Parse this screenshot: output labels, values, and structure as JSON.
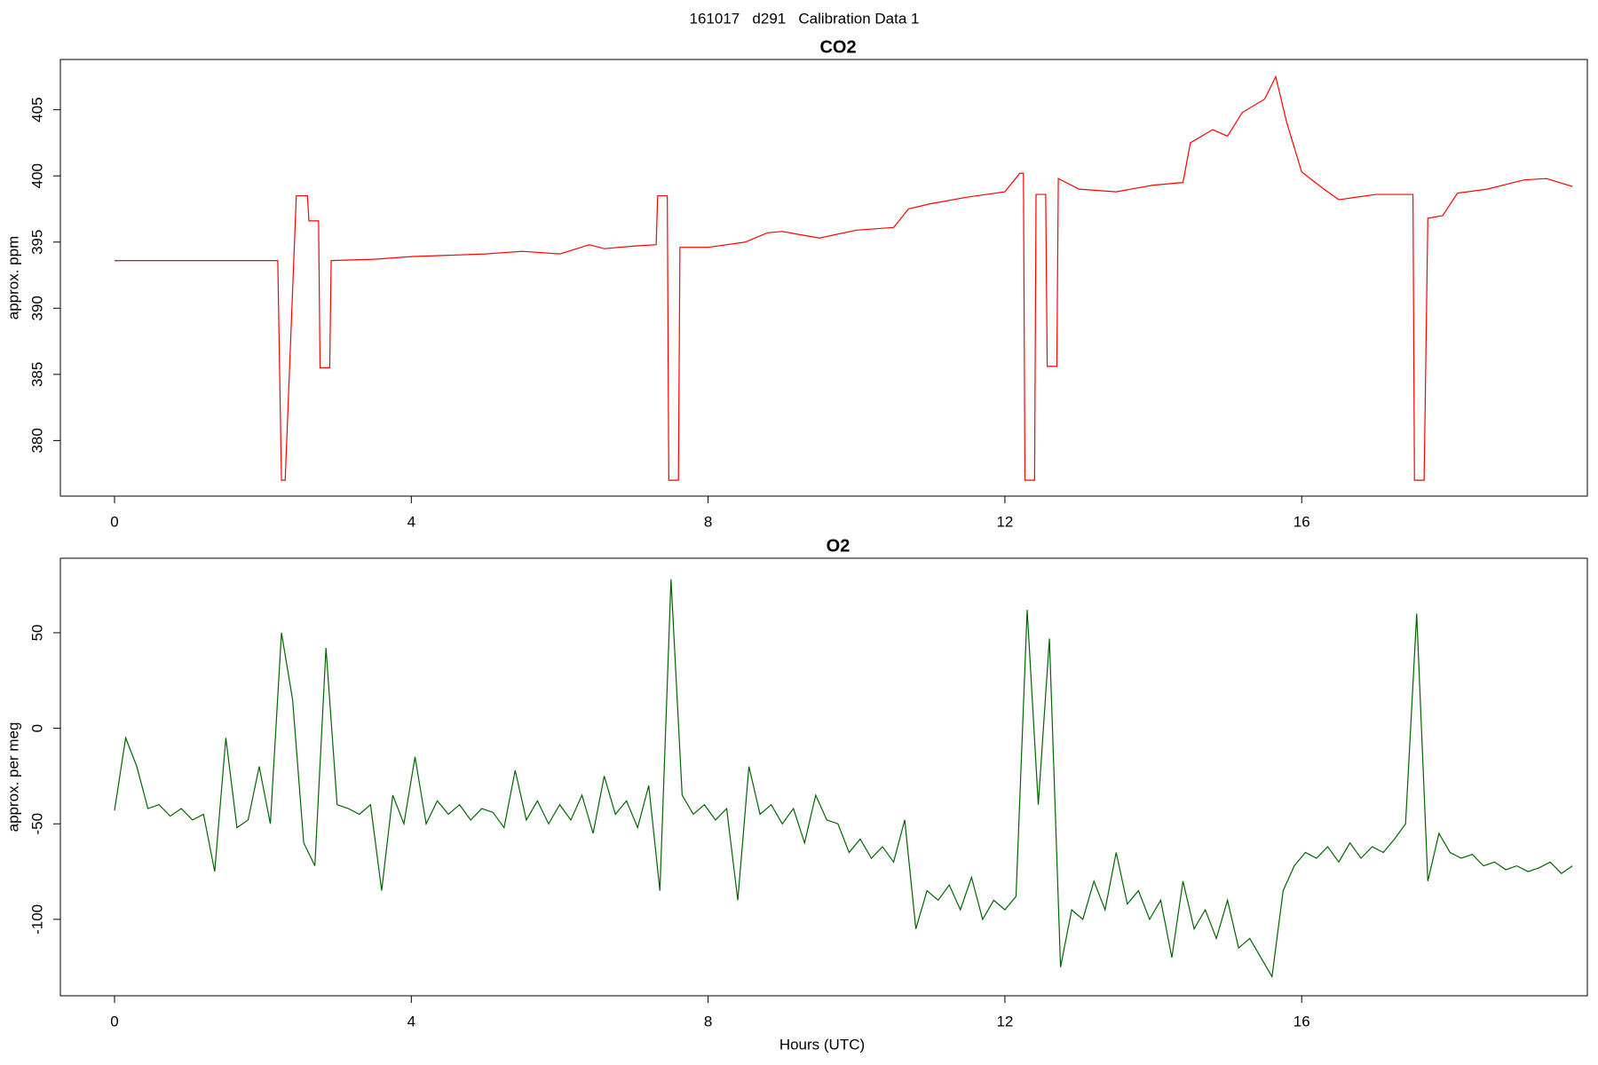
{
  "title": "161017   d291   Calibration Data 1",
  "chart_data": [
    {
      "type": "line",
      "title": "CO2",
      "ylabel": "approx. ppm",
      "xlim": [
        -0.73,
        19.85
      ],
      "xticks": [
        0,
        4,
        8,
        12,
        16
      ],
      "ylim": [
        375.8,
        408.8
      ],
      "yticks": [
        380,
        385,
        390,
        395,
        400,
        405
      ],
      "series": [
        {
          "name": "CO2",
          "color": "#ff0000",
          "x": [
            0,
            2.2,
            2.25,
            2.3,
            2.45,
            2.6,
            2.62,
            2.75,
            2.77,
            2.9,
            2.92,
            3.5,
            4,
            4.5,
            5,
            5.5,
            6,
            6.4,
            6.6,
            7,
            7.3,
            7.32,
            7.45,
            7.47,
            7.6,
            7.62,
            8,
            8.5,
            8.8,
            9,
            9.5,
            10,
            10.5,
            10.7,
            11,
            11.5,
            12,
            12.2,
            12.25,
            12.27,
            12.4,
            12.42,
            12.55,
            12.57,
            12.7,
            12.72,
            13,
            13.5,
            14,
            14.4,
            14.5,
            14.8,
            15,
            15.2,
            15.5,
            15.65,
            15.8,
            16,
            16.3,
            16.5,
            17,
            17.5,
            17.52,
            17.65,
            17.7,
            17.9,
            18.1,
            18.5,
            19,
            19.3,
            19.65
          ],
          "values": [
            393.6,
            393.6,
            377,
            377,
            398.5,
            398.5,
            396.6,
            396.6,
            385.5,
            385.5,
            393.6,
            393.7,
            393.9,
            394,
            394.1,
            394.3,
            394.1,
            394.8,
            394.5,
            394.7,
            394.8,
            398.5,
            398.5,
            377,
            377,
            394.6,
            394.6,
            395,
            395.7,
            395.8,
            395.3,
            395.9,
            396.1,
            397.5,
            397.9,
            398.4,
            398.8,
            400.2,
            400.2,
            377,
            377,
            398.6,
            398.6,
            385.6,
            385.6,
            399.8,
            399,
            398.8,
            399.3,
            399.5,
            402.5,
            403.5,
            403,
            404.8,
            405.8,
            407.5,
            404,
            400.3,
            399,
            398.2,
            398.6,
            398.6,
            377,
            377,
            396.8,
            397,
            398.7,
            399,
            399.7,
            399.8,
            399.2
          ]
        }
      ]
    },
    {
      "type": "line",
      "title": "O2",
      "ylabel": "approx. per meg",
      "xlabel": "Hours (UTC)",
      "xlim": [
        -0.73,
        19.85
      ],
      "xticks": [
        0,
        4,
        8,
        12,
        16
      ],
      "ylim": [
        -140,
        89
      ],
      "yticks": [
        -100,
        -50,
        0,
        50
      ],
      "series": [
        {
          "name": "O2",
          "color": "#006400",
          "x": [
            0,
            0.15,
            0.3,
            0.45,
            0.6,
            0.75,
            0.9,
            1.05,
            1.2,
            1.35,
            1.5,
            1.65,
            1.8,
            1.95,
            2.1,
            2.25,
            2.4,
            2.55,
            2.7,
            2.85,
            3,
            3.15,
            3.3,
            3.45,
            3.6,
            3.75,
            3.9,
            4.05,
            4.2,
            4.35,
            4.5,
            4.65,
            4.8,
            4.95,
            5.1,
            5.25,
            5.4,
            5.55,
            5.7,
            5.85,
            6,
            6.15,
            6.3,
            6.45,
            6.6,
            6.75,
            6.9,
            7.05,
            7.2,
            7.35,
            7.5,
            7.65,
            7.8,
            7.95,
            8.1,
            8.25,
            8.4,
            8.55,
            8.7,
            8.85,
            9,
            9.15,
            9.3,
            9.45,
            9.6,
            9.75,
            9.9,
            10.05,
            10.2,
            10.35,
            10.5,
            10.65,
            10.8,
            10.95,
            11.1,
            11.25,
            11.4,
            11.55,
            11.7,
            11.85,
            12,
            12.15,
            12.3,
            12.45,
            12.6,
            12.75,
            12.9,
            13.05,
            13.2,
            13.35,
            13.5,
            13.65,
            13.8,
            13.95,
            14.1,
            14.25,
            14.4,
            14.55,
            14.7,
            14.85,
            15,
            15.15,
            15.3,
            15.45,
            15.6,
            15.75,
            15.9,
            16.05,
            16.2,
            16.35,
            16.5,
            16.65,
            16.8,
            16.95,
            17.1,
            17.25,
            17.4,
            17.55,
            17.7,
            17.85,
            18,
            18.15,
            18.3,
            18.45,
            18.6,
            18.75,
            18.9,
            19.05,
            19.2,
            19.35,
            19.5,
            19.65
          ],
          "values": [
            -43,
            -5,
            -20,
            -42,
            -40,
            -46,
            -42,
            -48,
            -45,
            -75,
            -5,
            -52,
            -48,
            -20,
            -50,
            50,
            15,
            -60,
            -72,
            42,
            -40,
            -42,
            -45,
            -40,
            -85,
            -35,
            -50,
            -15,
            -50,
            -38,
            -45,
            -40,
            -48,
            -42,
            -44,
            -52,
            -22,
            -48,
            -38,
            -50,
            -40,
            -48,
            -35,
            -55,
            -25,
            -45,
            -38,
            -52,
            -30,
            -85,
            78,
            -35,
            -45,
            -40,
            -48,
            -42,
            -90,
            -20,
            -45,
            -40,
            -50,
            -42,
            -60,
            -35,
            -48,
            -50,
            -65,
            -58,
            -68,
            -62,
            -70,
            -48,
            -105,
            -85,
            -90,
            -82,
            -95,
            -78,
            -100,
            -90,
            -95,
            -88,
            62,
            -40,
            47,
            -125,
            -95,
            -100,
            -80,
            -95,
            -65,
            -92,
            -85,
            -100,
            -90,
            -120,
            -80,
            -105,
            -95,
            -110,
            -90,
            -115,
            -110,
            -120,
            -130,
            -85,
            -72,
            -65,
            -68,
            -62,
            -70,
            -60,
            -68,
            -62,
            -65,
            -58,
            -50,
            60,
            -80,
            -55,
            -65,
            -68,
            -66,
            -72,
            -70,
            -74,
            -72,
            -75,
            -73,
            -70,
            -76,
            -72
          ]
        }
      ]
    }
  ]
}
